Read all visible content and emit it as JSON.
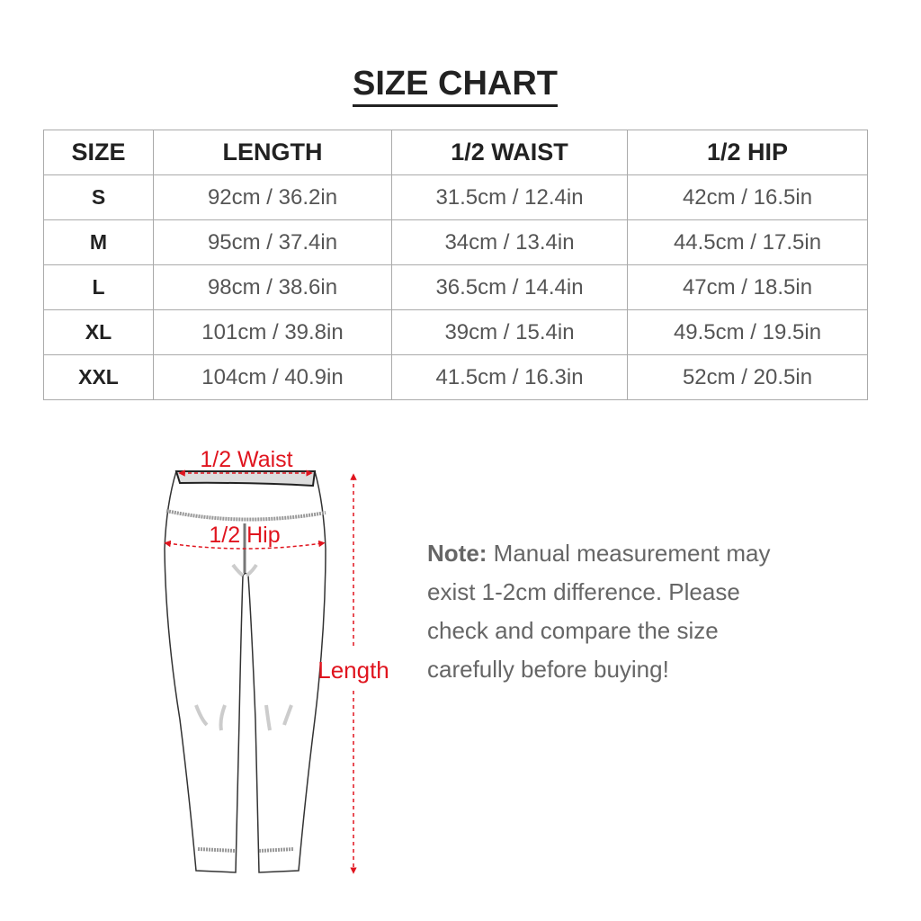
{
  "title": "SIZE CHART",
  "table": {
    "headers": [
      "SIZE",
      "LENGTH",
      "1/2 WAIST",
      "1/2 HIP"
    ],
    "rows": [
      [
        "S",
        "92cm / 36.2in",
        "31.5cm / 12.4in",
        "42cm / 16.5in"
      ],
      [
        "M",
        "95cm / 37.4in",
        "34cm / 13.4in",
        "44.5cm / 17.5in"
      ],
      [
        "L",
        "98cm / 38.6in",
        "36.5cm / 14.4in",
        "47cm / 18.5in"
      ],
      [
        "XL",
        "101cm / 39.8in",
        "39cm / 15.4in",
        "49.5cm / 19.5in"
      ],
      [
        "XXL",
        "104cm / 40.9in",
        "41.5cm / 16.3in",
        "52cm / 20.5in"
      ]
    ]
  },
  "diagram": {
    "waist_label": "1/2 Waist",
    "hip_label": "1/2 Hip",
    "length_label": "Length",
    "accent_color": "#e0141e"
  },
  "note": {
    "label": "Note:",
    "text": "Manual measurement may exist 1-2cm difference. Please check and compare the size carefully before buying!"
  }
}
